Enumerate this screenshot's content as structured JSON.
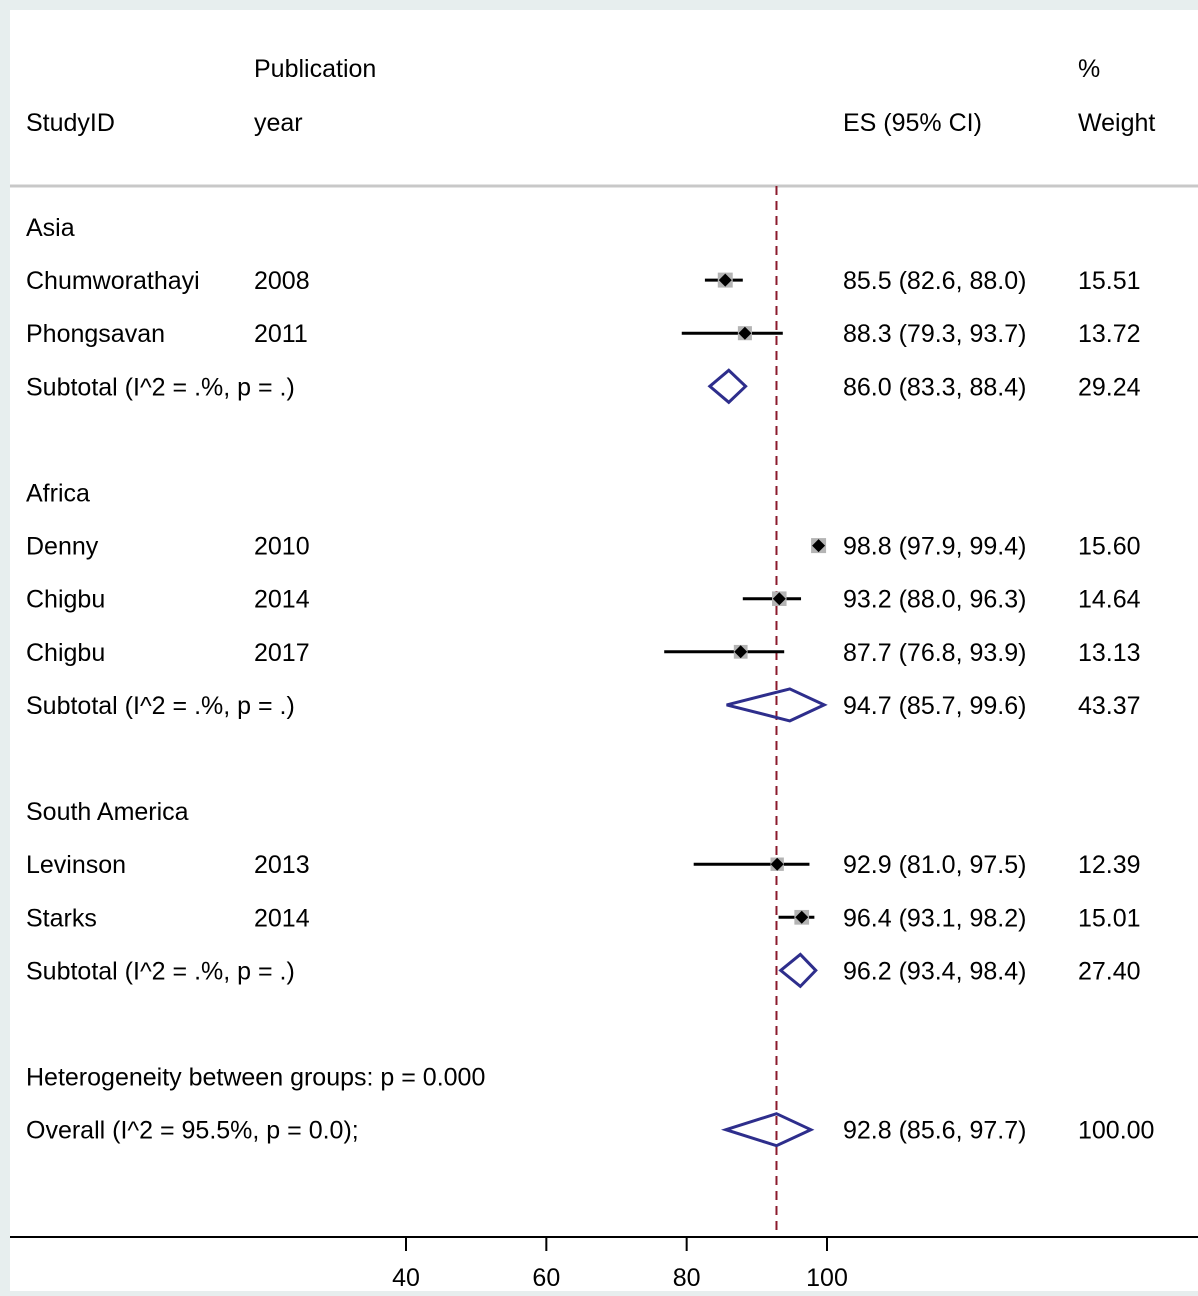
{
  "chart_data": {
    "type": "forest",
    "header": {
      "study_label": "StudyID",
      "year_label_line1": "Publication",
      "year_label_line2": "year",
      "es_label": "ES (95% CI)",
      "weight_label_line1": "%",
      "weight_label_line2": "Weight"
    },
    "null_line_value": 92.8,
    "xlim": [
      20,
      120
    ],
    "xticks": [
      "40",
      "60",
      "80",
      "100"
    ],
    "xtick_values": [
      40,
      60,
      80,
      100
    ],
    "rows": [
      {
        "kind": "group",
        "label": "Asia"
      },
      {
        "kind": "study",
        "label": "Chumworathayi",
        "year": "2008",
        "es": 85.5,
        "lo": 82.6,
        "hi": 88.0,
        "es_text": "85.5 (82.6, 88.0)",
        "weight": 15.51,
        "weight_text": "15.51"
      },
      {
        "kind": "study",
        "label": "Phongsavan",
        "year": "2011",
        "es": 88.3,
        "lo": 79.3,
        "hi": 93.7,
        "es_text": "88.3 (79.3, 93.7)",
        "weight": 13.72,
        "weight_text": "13.72"
      },
      {
        "kind": "subtotal",
        "label": "Subtotal  (I^2 = .%, p = .)",
        "es": 86.0,
        "lo": 83.3,
        "hi": 88.4,
        "es_text": "86.0 (83.3, 88.4)",
        "weight_text": "29.24"
      },
      {
        "kind": "blank"
      },
      {
        "kind": "group",
        "label": "Africa"
      },
      {
        "kind": "study",
        "label": "Denny",
        "year": "2010",
        "es": 98.8,
        "lo": 97.9,
        "hi": 99.4,
        "es_text": "98.8 (97.9, 99.4)",
        "weight": 15.6,
        "weight_text": "15.60"
      },
      {
        "kind": "study",
        "label": "Chigbu",
        "year": "2014",
        "es": 93.2,
        "lo": 88.0,
        "hi": 96.3,
        "es_text": "93.2 (88.0, 96.3)",
        "weight": 14.64,
        "weight_text": "14.64"
      },
      {
        "kind": "study",
        "label": "Chigbu",
        "year": "2017",
        "es": 87.7,
        "lo": 76.8,
        "hi": 93.9,
        "es_text": "87.7 (76.8, 93.9)",
        "weight": 13.13,
        "weight_text": "13.13"
      },
      {
        "kind": "subtotal",
        "label": "Subtotal  (I^2 = .%, p = .)",
        "es": 94.7,
        "lo": 85.7,
        "hi": 99.6,
        "es_text": "94.7 (85.7, 99.6)",
        "weight_text": "43.37"
      },
      {
        "kind": "blank"
      },
      {
        "kind": "group",
        "label": "South America"
      },
      {
        "kind": "study",
        "label": "Levinson",
        "year": "2013",
        "es": 92.9,
        "lo": 81.0,
        "hi": 97.5,
        "es_text": "92.9 (81.0, 97.5)",
        "weight": 12.39,
        "weight_text": "12.39"
      },
      {
        "kind": "study",
        "label": "Starks",
        "year": "2014",
        "es": 96.4,
        "lo": 93.1,
        "hi": 98.2,
        "es_text": "96.4 (93.1, 98.2)",
        "weight": 15.01,
        "weight_text": "15.01"
      },
      {
        "kind": "subtotal",
        "label": "Subtotal  (I^2 = .%, p = .)",
        "es": 96.2,
        "lo": 93.4,
        "hi": 98.4,
        "es_text": "96.2 (93.4, 98.4)",
        "weight_text": "27.40"
      },
      {
        "kind": "blank"
      },
      {
        "kind": "note",
        "label": "Heterogeneity between groups: p = 0.000"
      },
      {
        "kind": "overall",
        "label": "Overall  (I^2 = 95.5%, p = 0.0);",
        "es": 92.8,
        "lo": 85.6,
        "hi": 97.7,
        "es_text": "92.8 (85.6, 97.7)",
        "weight_text": "100.00"
      }
    ]
  },
  "colors": {
    "outer_background": "#e7eeee",
    "plot_background": "#ffffff",
    "diamond": "#2e2e8c",
    "null_line": "#8b1a2c",
    "weight_box": "#b4b4b4",
    "header_rule": "#c8c8c8",
    "ink": "#000000"
  }
}
